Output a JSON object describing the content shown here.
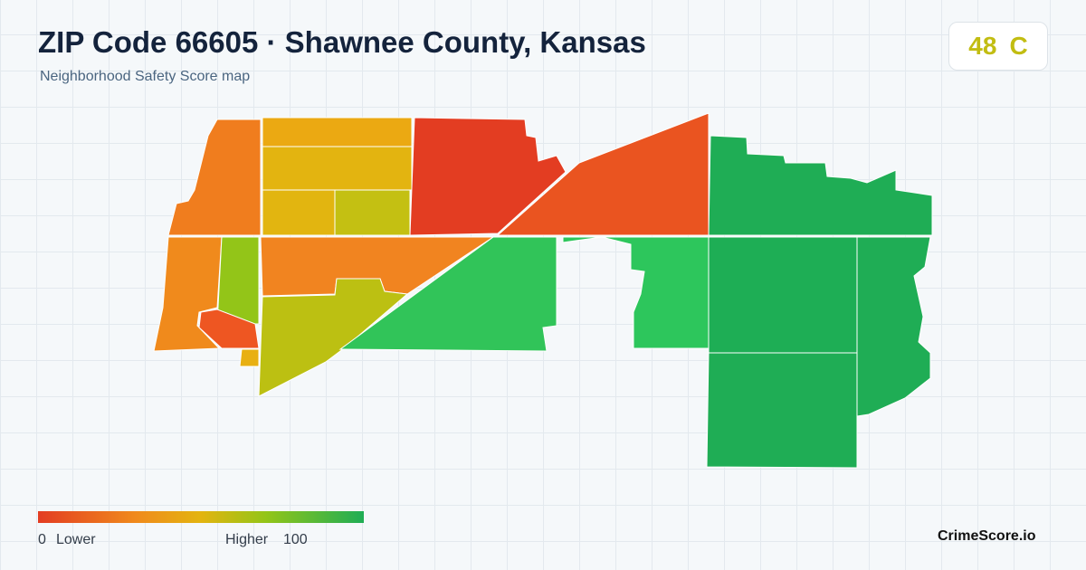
{
  "header": {
    "title": "ZIP Code 66605 · Shawnee County, Kansas",
    "subtitle": "Neighborhood Safety Score map"
  },
  "score": {
    "value": "48",
    "grade": "C"
  },
  "legend": {
    "min": "0",
    "min_label": "Lower",
    "max_label": "Higher",
    "max": "100"
  },
  "brand": "CrimeScore.io"
}
